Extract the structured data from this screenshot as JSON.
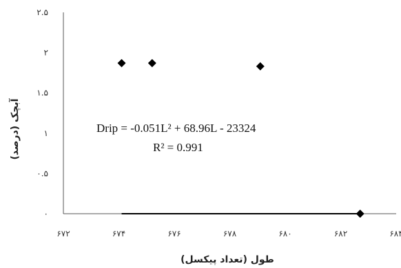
{
  "chart_data": {
    "type": "scatter",
    "xlabel": "طول (تعداد پیکسل)",
    "ylabel": "آبچک (درصد)",
    "xlim": [
      672,
      684
    ],
    "ylim": [
      0,
      2.5
    ],
    "x_ticks": [
      672,
      674,
      676,
      678,
      680,
      682,
      684
    ],
    "x_tick_labels": [
      "۶۷۲",
      "۶۷۴",
      "۶۷۶",
      "۶۷۸",
      "۶۸۰",
      "۶۸۲",
      "۶۸۴"
    ],
    "y_ticks": [
      0,
      0.5,
      1,
      1.5,
      2,
      2.5
    ],
    "y_tick_labels": [
      "۰",
      "۰.۵",
      "۱",
      "۱.۵",
      "۲",
      "۲.۵"
    ],
    "grid": false,
    "series": [
      {
        "points": [
          {
            "x": 674.1,
            "y": 1.87
          },
          {
            "x": 675.2,
            "y": 1.87
          },
          {
            "x": 679.1,
            "y": 1.83
          },
          {
            "x": 682.7,
            "y": 0.0
          }
        ],
        "marker": "diamond",
        "color": "#000000"
      }
    ],
    "trendline": {
      "type": "polynomial",
      "coefficients": [
        -0.051,
        68.96,
        -23324
      ],
      "x_range": [
        674.1,
        682.7
      ],
      "color": "#000000"
    },
    "annotations": {
      "equation": "Drip = -0.051L² + 68.96L - 23324",
      "r2": "R² = 0.991"
    }
  }
}
